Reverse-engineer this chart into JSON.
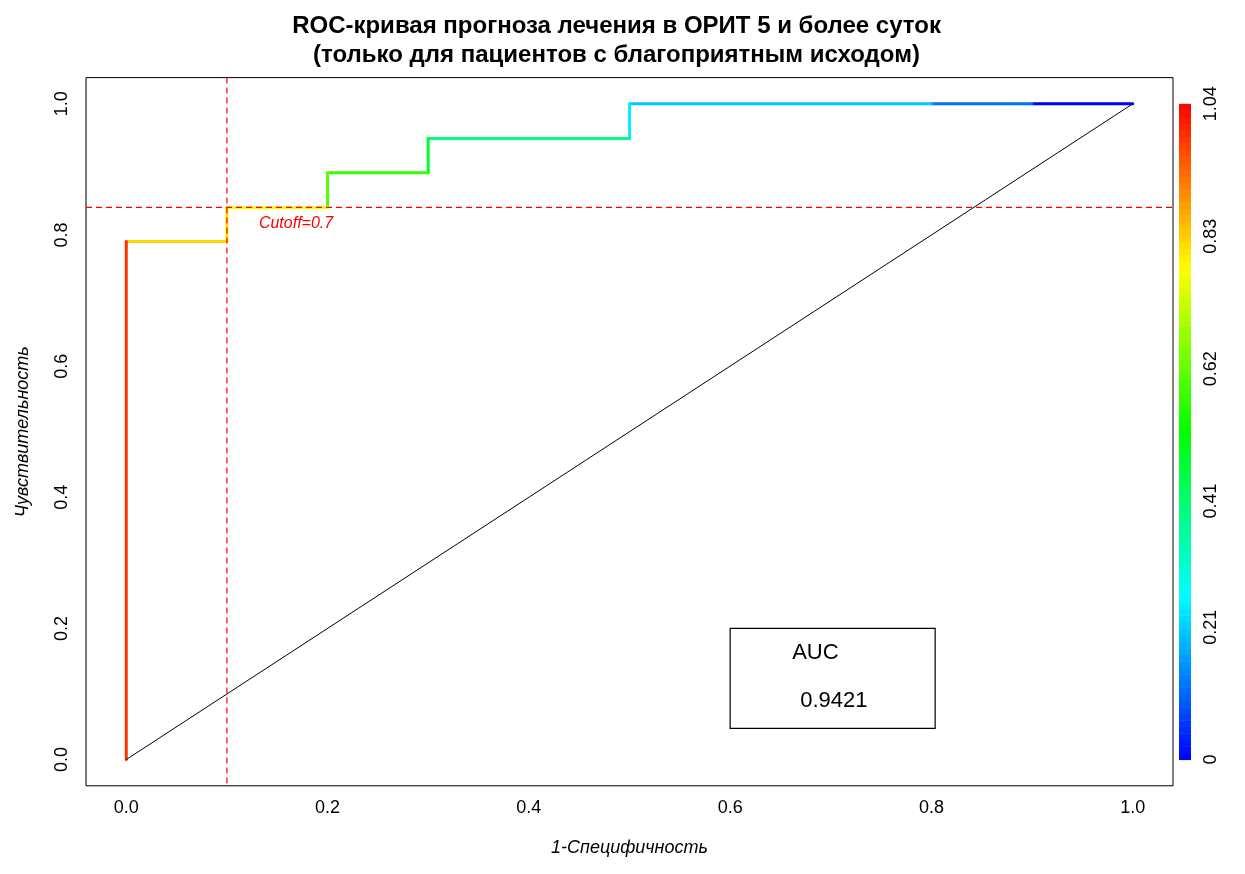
{
  "chart_data": {
    "type": "line",
    "title": "ROC-кривая прогноза лечения в ОРИТ 5 и более суток\n(только для пациентов с благоприятным исходом)",
    "xlabel": "1-Специфичность",
    "ylabel": "Чувствительность",
    "series": [
      {
        "x": [
          0,
          1
        ],
        "values": [
          0,
          1
        ],
        "color": "#000000"
      },
      {
        "x": [
          0,
          0
        ],
        "values": [
          0,
          0.79
        ],
        "color": "#ff3000"
      },
      {
        "x": [
          0,
          0.1
        ],
        "values": [
          0.79,
          0.79
        ],
        "color": "#ffd700"
      },
      {
        "x": [
          0.1,
          0.1
        ],
        "values": [
          0.79,
          0.842
        ],
        "color": "#ffe800"
      },
      {
        "x": [
          0.1,
          0.2
        ],
        "values": [
          0.842,
          0.842
        ],
        "color": "#f2ff00"
      },
      {
        "x": [
          0.2,
          0.2
        ],
        "values": [
          0.842,
          0.895
        ],
        "color": "#55ff00"
      },
      {
        "x": [
          0.2,
          0.3
        ],
        "values": [
          0.895,
          0.895
        ],
        "color": "#33ff00"
      },
      {
        "x": [
          0.3,
          0.3
        ],
        "values": [
          0.895,
          0.947
        ],
        "color": "#00ff30"
      },
      {
        "x": [
          0.3,
          0.5
        ],
        "values": [
          0.947,
          0.947
        ],
        "color": "#00ff80"
      },
      {
        "x": [
          0.5,
          0.5
        ],
        "values": [
          0.947,
          1
        ],
        "color": "#00f0ff"
      },
      {
        "x": [
          0.5,
          0.8
        ],
        "values": [
          1,
          1
        ],
        "color": "#00c8ff"
      },
      {
        "x": [
          0.8,
          0.9
        ],
        "values": [
          1,
          1
        ],
        "color": "#0070ff"
      },
      {
        "x": [
          0.9,
          1
        ],
        "values": [
          1,
          1
        ],
        "color": "#0000ff"
      }
    ],
    "xlim": [
      -0.04,
      1.04
    ],
    "ylim": [
      -0.04,
      1.04
    ],
    "xticks": [
      {
        "value": 0,
        "label": "0.0"
      },
      0.2,
      0.4,
      0.6,
      0.8,
      {
        "value": 1,
        "label": "1.0"
      }
    ],
    "yticks": [
      {
        "value": 0,
        "label": "0.0"
      },
      0.2,
      0.4,
      0.6,
      0.8,
      {
        "value": 1,
        "label": "1.0"
      }
    ],
    "clim": [
      0,
      1.04
    ],
    "cticks": [
      0,
      0.21,
      0.41,
      0.62,
      0.83,
      1.04
    ],
    "ref_lines": [
      {
        "axis": "x",
        "value": 0.1,
        "color": "#ff0000",
        "line_style": "dashed"
      },
      {
        "axis": "y",
        "value": 0.842,
        "color": "#ff0000",
        "line_style": "dashed"
      }
    ],
    "annotations": [
      {
        "text": "Cutoff=0.7",
        "x": 0.1,
        "y": 0.842
      },
      "AUC",
      "0.9421"
    ],
    "legend": false,
    "grid": false
  }
}
